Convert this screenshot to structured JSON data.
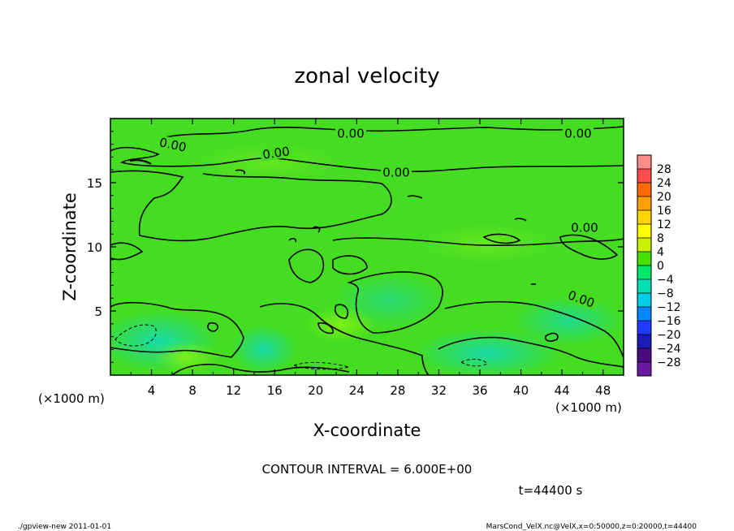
{
  "chart_data": {
    "type": "heatmap",
    "title": "zonal velocity",
    "xlabel": "X-coordinate",
    "ylabel": "Z-coordinate",
    "x_unit_label": "(×1000 m)",
    "y_unit_label": "(×1000 m)",
    "xlim": [
      0,
      50
    ],
    "ylim": [
      0,
      20
    ],
    "x_ticks": [
      4,
      8,
      12,
      16,
      20,
      24,
      28,
      32,
      36,
      40,
      44,
      48
    ],
    "y_ticks": [
      5,
      10,
      15
    ],
    "colorbar": {
      "levels": [
        "28",
        "24",
        "20",
        "16",
        "12",
        "8",
        "4",
        "0",
        "−4",
        "−8",
        "−12",
        "−16",
        "−20",
        "−24",
        "−28"
      ],
      "colors": [
        "#ff8a8a",
        "#ff4d4d",
        "#ff6a00",
        "#ff9f00",
        "#ffd400",
        "#ffff00",
        "#c8f000",
        "#44e000",
        "#00e86a",
        "#00e0b4",
        "#00cce8",
        "#0088ff",
        "#1e3cff",
        "#1a1ab4",
        "#4a0a80",
        "#6a1aa0"
      ]
    },
    "field_colors": {
      "background": "#44dd22",
      "positive": "#66e81a",
      "negative": "#1ee0a0"
    },
    "contour_labels": [
      "0.00",
      "0.00",
      "0.00",
      "0.00",
      "0.00",
      "0.00",
      "0.00"
    ],
    "contour_interval": "CONTOUR INTERVAL = 6.000E+00",
    "time": "t=44400 s"
  },
  "footer": {
    "left": "./gpview-new   2011-01-01",
    "right": "MarsCond_VelX.nc@VelX,x=0:50000,z=0:20000,t=44400"
  }
}
